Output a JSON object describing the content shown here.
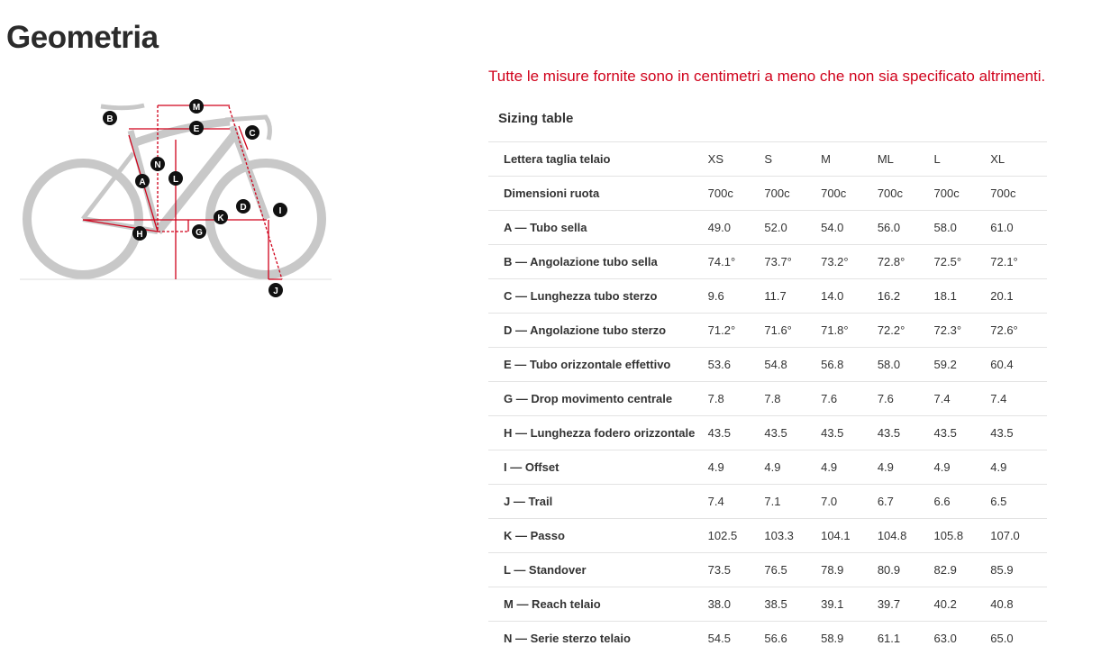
{
  "title": "Geometria",
  "note": "Tutte le misure fornite sono in centimetri a meno che non sia specificato altrimenti.",
  "diagram": {
    "labels": [
      "A",
      "B",
      "C",
      "D",
      "E",
      "G",
      "H",
      "I",
      "J",
      "K",
      "L",
      "M",
      "N"
    ],
    "accent": "#d0021b"
  },
  "sizing_table": {
    "title": "Sizing table",
    "header": {
      "label": "Lettera taglia telaio",
      "sizes": [
        "XS",
        "S",
        "M",
        "ML",
        "L",
        "XL"
      ]
    },
    "rows": [
      {
        "label": "Dimensioni ruota",
        "values": [
          "700c",
          "700c",
          "700c",
          "700c",
          "700c",
          "700c"
        ]
      },
      {
        "label": "A — Tubo sella",
        "values": [
          "49.0",
          "52.0",
          "54.0",
          "56.0",
          "58.0",
          "61.0"
        ]
      },
      {
        "label": "B — Angolazione tubo sella",
        "values": [
          "74.1°",
          "73.7°",
          "73.2°",
          "72.8°",
          "72.5°",
          "72.1°"
        ]
      },
      {
        "label": "C — Lunghezza tubo sterzo",
        "values": [
          "9.6",
          "11.7",
          "14.0",
          "16.2",
          "18.1",
          "20.1"
        ]
      },
      {
        "label": "D — Angolazione tubo sterzo",
        "values": [
          "71.2°",
          "71.6°",
          "71.8°",
          "72.2°",
          "72.3°",
          "72.6°"
        ]
      },
      {
        "label": "E — Tubo orizzontale effettivo",
        "values": [
          "53.6",
          "54.8",
          "56.8",
          "58.0",
          "59.2",
          "60.4"
        ]
      },
      {
        "label": "G — Drop movimento centrale",
        "values": [
          "7.8",
          "7.8",
          "7.6",
          "7.6",
          "7.4",
          "7.4"
        ]
      },
      {
        "label": "H — Lunghezza fodero orizzontale",
        "values": [
          "43.5",
          "43.5",
          "43.5",
          "43.5",
          "43.5",
          "43.5"
        ]
      },
      {
        "label": "I — Offset",
        "values": [
          "4.9",
          "4.9",
          "4.9",
          "4.9",
          "4.9",
          "4.9"
        ]
      },
      {
        "label": "J — Trail",
        "values": [
          "7.4",
          "7.1",
          "7.0",
          "6.7",
          "6.6",
          "6.5"
        ]
      },
      {
        "label": "K — Passo",
        "values": [
          "102.5",
          "103.3",
          "104.1",
          "104.8",
          "105.8",
          "107.0"
        ]
      },
      {
        "label": "L — Standover",
        "values": [
          "73.5",
          "76.5",
          "78.9",
          "80.9",
          "82.9",
          "85.9"
        ]
      },
      {
        "label": "M — Reach telaio",
        "values": [
          "38.0",
          "38.5",
          "39.1",
          "39.7",
          "40.2",
          "40.8"
        ]
      },
      {
        "label": "N — Serie sterzo telaio",
        "values": [
          "54.5",
          "56.6",
          "58.9",
          "61.1",
          "63.0",
          "65.0"
        ]
      }
    ]
  }
}
